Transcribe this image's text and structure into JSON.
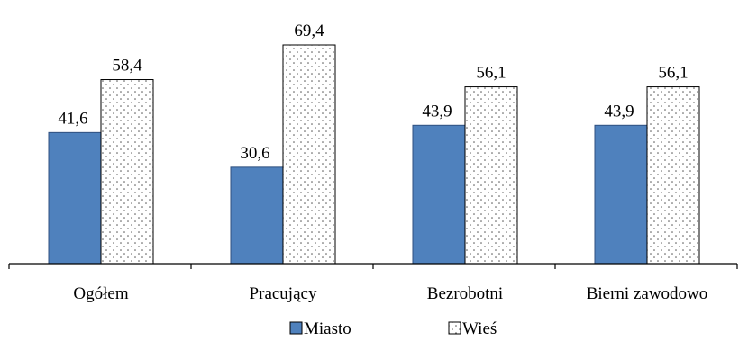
{
  "chart_data": {
    "type": "bar",
    "categories": [
      "Ogółem",
      "Pracujący",
      "Bezrobotni",
      "Bierni zawodowo"
    ],
    "series": [
      {
        "name": "Miasto",
        "values": [
          41.6,
          30.6,
          43.9,
          43.9
        ],
        "labels": [
          "41,6",
          "30,6",
          "43,9",
          "43,9"
        ],
        "color": "#4f81bd",
        "pattern": "solid"
      },
      {
        "name": "Wieś",
        "values": [
          58.4,
          69.4,
          56.1,
          56.1
        ],
        "labels": [
          "58,4",
          "69,4",
          "56,1",
          "56,1"
        ],
        "color": "#ffffff",
        "pattern": "dotted"
      }
    ],
    "ylim": [
      0,
      80
    ],
    "grid": false,
    "legend_position": "bottom-center",
    "title": "",
    "xlabel": "",
    "ylabel": ""
  }
}
